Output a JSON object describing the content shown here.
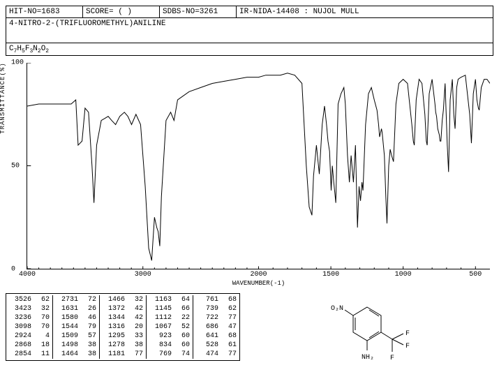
{
  "header": {
    "hit_no": "HIT-NO=1683",
    "score": "SCORE=  ( )",
    "sdbs_no": "SDBS-NO=3261",
    "ir_label": "IR-NIDA-14408 : NUJOL MULL"
  },
  "compound_name": "4-NITRO-2-(TRIFLUOROMETHYL)ANILINE",
  "formula_parts": [
    "C",
    "7",
    "H",
    "5",
    "F",
    "3",
    "N",
    "2",
    "O",
    "2"
  ],
  "chart": {
    "type": "line",
    "ylabel": "TRANSMITTANCE(%)",
    "xlabel": "WAVENUMBER(-1)",
    "ylim": [
      0,
      100
    ],
    "yticks": [
      0,
      50,
      100
    ],
    "xlim": [
      4000,
      400
    ],
    "xticks": [
      4000,
      3000,
      2000,
      1500,
      1000,
      500
    ],
    "line_color": "#000000",
    "background_color": "#ffffff",
    "points": [
      [
        4000,
        79
      ],
      [
        3900,
        80
      ],
      [
        3800,
        80
      ],
      [
        3700,
        80
      ],
      [
        3620,
        80
      ],
      [
        3580,
        82
      ],
      [
        3560,
        60
      ],
      [
        3526,
        62
      ],
      [
        3500,
        78
      ],
      [
        3470,
        76
      ],
      [
        3440,
        50
      ],
      [
        3423,
        32
      ],
      [
        3400,
        60
      ],
      [
        3360,
        72
      ],
      [
        3330,
        73
      ],
      [
        3300,
        74
      ],
      [
        3270,
        72
      ],
      [
        3236,
        70
      ],
      [
        3200,
        74
      ],
      [
        3160,
        76
      ],
      [
        3130,
        74
      ],
      [
        3098,
        70
      ],
      [
        3060,
        75
      ],
      [
        3020,
        70
      ],
      [
        2980,
        40
      ],
      [
        2950,
        10
      ],
      [
        2924,
        4
      ],
      [
        2900,
        25
      ],
      [
        2880,
        20
      ],
      [
        2868,
        18
      ],
      [
        2854,
        11
      ],
      [
        2840,
        35
      ],
      [
        2800,
        72
      ],
      [
        2760,
        76
      ],
      [
        2731,
        72
      ],
      [
        2700,
        82
      ],
      [
        2600,
        86
      ],
      [
        2500,
        88
      ],
      [
        2400,
        90
      ],
      [
        2300,
        91
      ],
      [
        2200,
        92
      ],
      [
        2100,
        93
      ],
      [
        2000,
        93
      ],
      [
        1950,
        94
      ],
      [
        1900,
        94
      ],
      [
        1850,
        94
      ],
      [
        1800,
        95
      ],
      [
        1750,
        94
      ],
      [
        1700,
        90
      ],
      [
        1670,
        50
      ],
      [
        1650,
        30
      ],
      [
        1631,
        26
      ],
      [
        1620,
        45
      ],
      [
        1600,
        60
      ],
      [
        1580,
        46
      ],
      [
        1560,
        70
      ],
      [
        1544,
        79
      ],
      [
        1530,
        70
      ],
      [
        1520,
        62
      ],
      [
        1509,
        57
      ],
      [
        1498,
        38
      ],
      [
        1490,
        50
      ],
      [
        1480,
        42
      ],
      [
        1470,
        35
      ],
      [
        1466,
        32
      ],
      [
        1464,
        38
      ],
      [
        1450,
        80
      ],
      [
        1430,
        85
      ],
      [
        1410,
        88
      ],
      [
        1400,
        80
      ],
      [
        1385,
        55
      ],
      [
        1372,
        42
      ],
      [
        1360,
        55
      ],
      [
        1344,
        42
      ],
      [
        1330,
        60
      ],
      [
        1316,
        20
      ],
      [
        1305,
        40
      ],
      [
        1295,
        33
      ],
      [
        1285,
        42
      ],
      [
        1278,
        38
      ],
      [
        1260,
        70
      ],
      [
        1240,
        85
      ],
      [
        1220,
        88
      ],
      [
        1200,
        82
      ],
      [
        1181,
        77
      ],
      [
        1170,
        70
      ],
      [
        1163,
        64
      ],
      [
        1150,
        68
      ],
      [
        1145,
        66
      ],
      [
        1130,
        55
      ],
      [
        1120,
        35
      ],
      [
        1112,
        22
      ],
      [
        1100,
        50
      ],
      [
        1090,
        58
      ],
      [
        1080,
        55
      ],
      [
        1067,
        52
      ],
      [
        1050,
        80
      ],
      [
        1030,
        90
      ],
      [
        1000,
        92
      ],
      [
        970,
        90
      ],
      [
        940,
        70
      ],
      [
        930,
        62
      ],
      [
        923,
        60
      ],
      [
        910,
        82
      ],
      [
        890,
        92
      ],
      [
        870,
        90
      ],
      [
        850,
        75
      ],
      [
        840,
        62
      ],
      [
        834,
        60
      ],
      [
        820,
        85
      ],
      [
        800,
        92
      ],
      [
        780,
        80
      ],
      [
        775,
        76
      ],
      [
        769,
        74
      ],
      [
        761,
        68
      ],
      [
        750,
        65
      ],
      [
        745,
        62
      ],
      [
        739,
        62
      ],
      [
        730,
        72
      ],
      [
        722,
        77
      ],
      [
        710,
        90
      ],
      [
        695,
        60
      ],
      [
        686,
        47
      ],
      [
        675,
        82
      ],
      [
        660,
        92
      ],
      [
        650,
        75
      ],
      [
        641,
        68
      ],
      [
        630,
        88
      ],
      [
        620,
        92
      ],
      [
        600,
        93
      ],
      [
        570,
        94
      ],
      [
        540,
        75
      ],
      [
        528,
        61
      ],
      [
        515,
        85
      ],
      [
        500,
        92
      ],
      [
        490,
        82
      ],
      [
        480,
        78
      ],
      [
        474,
        77
      ],
      [
        460,
        88
      ],
      [
        440,
        92
      ],
      [
        420,
        92
      ],
      [
        400,
        90
      ]
    ]
  },
  "peak_table": {
    "columns": [
      [
        [
          "3526",
          "62"
        ],
        [
          "3423",
          "32"
        ],
        [
          "3236",
          "70"
        ],
        [
          "3098",
          "70"
        ],
        [
          "2924",
          "4"
        ],
        [
          "2868",
          "18"
        ],
        [
          "2854",
          "11"
        ]
      ],
      [
        [
          "2731",
          "72"
        ],
        [
          "1631",
          "26"
        ],
        [
          "1580",
          "46"
        ],
        [
          "1544",
          "79"
        ],
        [
          "1509",
          "57"
        ],
        [
          "1498",
          "38"
        ],
        [
          "1464",
          "38"
        ]
      ],
      [
        [
          "1466",
          "32"
        ],
        [
          "1372",
          "42"
        ],
        [
          "1344",
          "42"
        ],
        [
          "1316",
          "20"
        ],
        [
          "1295",
          "33"
        ],
        [
          "1278",
          "38"
        ],
        [
          "1181",
          "77"
        ]
      ],
      [
        [
          "1163",
          "64"
        ],
        [
          "1145",
          "66"
        ],
        [
          "1112",
          "22"
        ],
        [
          "1067",
          "52"
        ],
        [
          "923",
          "60"
        ],
        [
          "834",
          "60"
        ],
        [
          "769",
          "74"
        ]
      ],
      [
        [
          "761",
          "68"
        ],
        [
          "739",
          "62"
        ],
        [
          "722",
          "77"
        ],
        [
          "686",
          "47"
        ],
        [
          "641",
          "68"
        ],
        [
          "528",
          "61"
        ],
        [
          "474",
          "77"
        ]
      ]
    ]
  },
  "structure": {
    "labels": {
      "no2": "O₂N",
      "nh2": "NH₂",
      "f": "F"
    }
  }
}
